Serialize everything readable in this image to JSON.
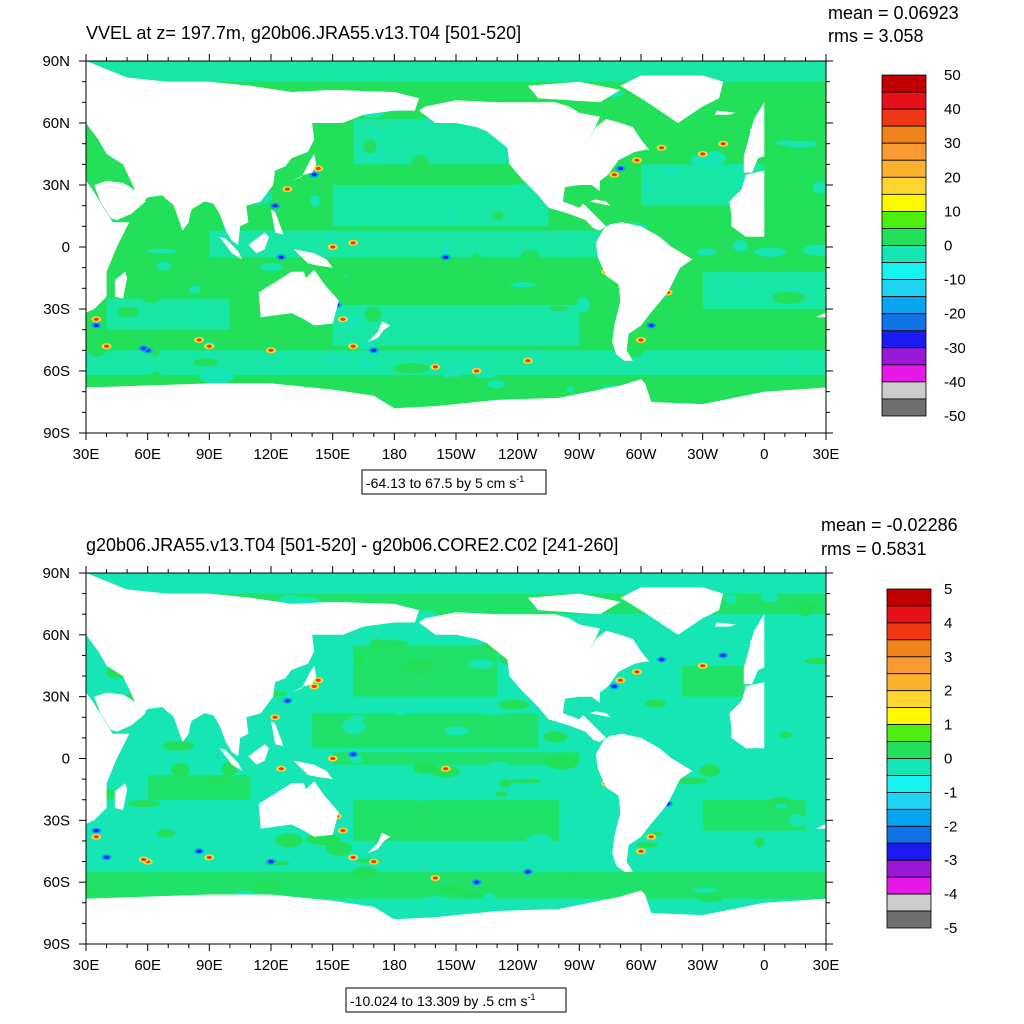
{
  "colors": {
    "land": "#ffffff",
    "levels": [
      "#6f6f6f",
      "#cccccc",
      "#e619e6",
      "#9a19d9",
      "#1a1af2",
      "#0f73e6",
      "#0aa5f0",
      "#1fd3f5",
      "#16f2f0",
      "#16e6b3",
      "#22e05a",
      "#4cf00e",
      "#fdf700",
      "#fdd62d",
      "#fcb12f",
      "#fa9a32",
      "#f0821a",
      "#ee3613",
      "#e6101a",
      "#c00000"
    ]
  },
  "chart_data": [
    {
      "type": "heatmap",
      "title": "VVEL at z= 197.7m, g20b06.JRA55.v13.T04 [501-520]",
      "stats": [
        "mean = 0.06923",
        "rms = 3.058"
      ],
      "contour_info": "-64.13 to 67.5 by 5 cm s",
      "contour_info_sup": "-1",
      "x_ticks": [
        "30E",
        "60E",
        "90E",
        "120E",
        "150E",
        "180",
        "150W",
        "120W",
        "90W",
        "60W",
        "30W",
        "0",
        "30E"
      ],
      "y_ticks": [
        "90N",
        "60N",
        "30N",
        "0",
        "30S",
        "60S",
        "90S"
      ],
      "xlim": [
        30,
        390
      ],
      "ylim": [
        -90,
        90
      ],
      "colorbar_labels": [
        "50",
        "40",
        "30",
        "20",
        "10",
        "0",
        "-10",
        "-20",
        "-30",
        "-40",
        "-50"
      ],
      "colorbar_range": [
        -50,
        50
      ],
      "ocean_base_level": "0 to 5",
      "field_summary": "ocean mostly 0 to -5 and 0 to 5; localized extremes up to about +40 and -40 along western boundary currents and the Southern Ocean"
    },
    {
      "type": "heatmap",
      "title": "g20b06.JRA55.v13.T04 [501-520] - g20b06.CORE2.C02 [241-260]",
      "stats": [
        "mean = -0.02286",
        "rms = 0.5831"
      ],
      "contour_info": "-10.024 to 13.309 by .5 cm s",
      "contour_info_sup": "-1",
      "x_ticks": [
        "30E",
        "60E",
        "90E",
        "120E",
        "150E",
        "180",
        "150W",
        "120W",
        "90W",
        "60W",
        "30W",
        "0",
        "30E"
      ],
      "y_ticks": [
        "90N",
        "60N",
        "30N",
        "0",
        "30S",
        "60S",
        "90S"
      ],
      "xlim": [
        30,
        390
      ],
      "ylim": [
        -90,
        90
      ],
      "colorbar_labels": [
        "5",
        "4",
        "3",
        "2",
        "1",
        "0",
        "-1",
        "-2",
        "-3",
        "-4",
        "-5"
      ],
      "colorbar_range": [
        -5,
        5
      ],
      "ocean_base_level": "0 to -0.5",
      "field_summary": "ocean mostly -0.5 to 0.5; extremes near +5 and -5 in western boundary currents, equatorial Pacific and Antarctic Circumpolar Current"
    }
  ]
}
